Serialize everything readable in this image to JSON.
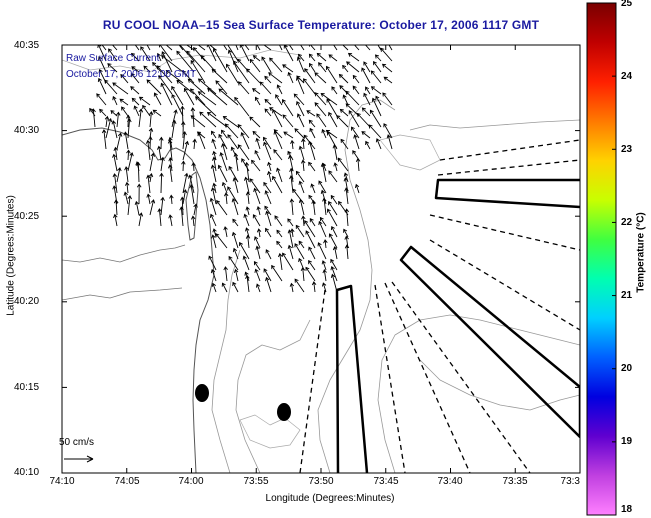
{
  "title": "RU COOL  NOAA–15  Sea Surface Temperature:  October 17, 2006 1117 GMT",
  "overlay": {
    "line1": "Raw Surface Current",
    "line2": "October 17, 2006 12:00 GMT"
  },
  "axes": {
    "xlabel": "Longitude (Degrees:Minutes)",
    "ylabel": "Latitude (Degrees:Minutes)",
    "x_ticks": [
      "74:10",
      "74:05",
      "74:00",
      "73:55",
      "73:50",
      "73:45",
      "73:40",
      "73:35",
      "73:3"
    ],
    "y_ticks": [
      "40:35",
      "40:30",
      "40:25",
      "40:20",
      "40:15",
      "40:10"
    ]
  },
  "scale": {
    "label": "50 cm/s"
  },
  "colorbar": {
    "label": "Temperature (°C)",
    "ticks": [
      "25",
      "24",
      "23",
      "22",
      "21",
      "20",
      "19",
      "18"
    ],
    "colors": [
      "#7a0000",
      "#c00000",
      "#ff2000",
      "#ff7a00",
      "#ffd200",
      "#c8ff00",
      "#40ff40",
      "#00ffb0",
      "#00d0ff",
      "#0060ff",
      "#0000e0",
      "#6000d0",
      "#c040e0",
      "#ff80ff"
    ]
  }
}
